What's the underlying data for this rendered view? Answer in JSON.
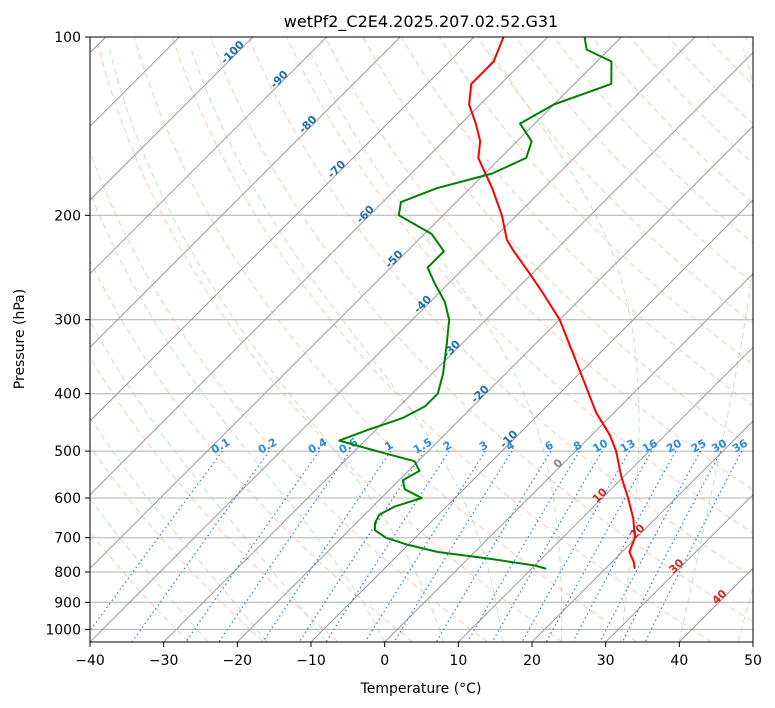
{
  "chart_data": {
    "type": "line",
    "title": "wetPf2_C2E4.2025.207.02.52.G31",
    "xlabel": "Temperature (°C)",
    "ylabel": "Pressure (hPa)",
    "xlim": [
      -40,
      50
    ],
    "ylim": [
      1050,
      100
    ],
    "y_scale": "log",
    "skew": true,
    "grid": true,
    "x_ticks": [
      -40,
      -30,
      -20,
      -10,
      0,
      10,
      20,
      30,
      40,
      50
    ],
    "x_tick_labels": [
      "−40",
      "−30",
      "−20",
      "−10",
      "0",
      "10",
      "20",
      "30",
      "40",
      "50"
    ],
    "y_ticks": [
      100,
      200,
      300,
      400,
      500,
      600,
      700,
      800,
      900,
      1000
    ],
    "y_tick_labels": [
      "100",
      "200",
      "300",
      "400",
      "500",
      "600",
      "700",
      "800",
      "900",
      "1000"
    ],
    "series": [
      {
        "color": "#ff0000",
        "points": [
          {
            "p": 790,
            "t": 24.0
          },
          {
            "p": 770,
            "t": 23.0
          },
          {
            "p": 740,
            "t": 21.0
          },
          {
            "p": 700,
            "t": 19.8
          },
          {
            "p": 650,
            "t": 17.0
          },
          {
            "p": 600,
            "t": 13.5
          },
          {
            "p": 550,
            "t": 9.5
          },
          {
            "p": 500,
            "t": 5.5
          },
          {
            "p": 470,
            "t": 2.5
          },
          {
            "p": 430,
            "t": -2.5
          },
          {
            "p": 400,
            "t": -6.0
          },
          {
            "p": 350,
            "t": -12.5
          },
          {
            "p": 300,
            "t": -20.0
          },
          {
            "p": 270,
            "t": -26.0
          },
          {
            "p": 250,
            "t": -30.5
          },
          {
            "p": 230,
            "t": -35.5
          },
          {
            "p": 220,
            "t": -38.0
          },
          {
            "p": 200,
            "t": -42.0
          },
          {
            "p": 180,
            "t": -47.0
          },
          {
            "p": 160,
            "t": -53.0
          },
          {
            "p": 150,
            "t": -55.0
          },
          {
            "p": 140,
            "t": -58.0
          },
          {
            "p": 130,
            "t": -61.5
          },
          {
            "p": 120,
            "t": -64.0
          },
          {
            "p": 110,
            "t": -64.0
          },
          {
            "p": 100,
            "t": -66.0
          }
        ]
      },
      {
        "color": "#008000",
        "points": [
          {
            "p": 790,
            "t": 12.0
          },
          {
            "p": 780,
            "t": 10.0
          },
          {
            "p": 760,
            "t": 3.0
          },
          {
            "p": 740,
            "t": -5.0
          },
          {
            "p": 720,
            "t": -10.0
          },
          {
            "p": 700,
            "t": -14.0
          },
          {
            "p": 680,
            "t": -16.5
          },
          {
            "p": 660,
            "t": -17.5
          },
          {
            "p": 640,
            "t": -18.0
          },
          {
            "p": 620,
            "t": -17.0
          },
          {
            "p": 600,
            "t": -14.5
          },
          {
            "p": 580,
            "t": -18.0
          },
          {
            "p": 560,
            "t": -19.5
          },
          {
            "p": 540,
            "t": -18.5
          },
          {
            "p": 520,
            "t": -20.5
          },
          {
            "p": 500,
            "t": -27.0
          },
          {
            "p": 480,
            "t": -33.5
          },
          {
            "p": 460,
            "t": -31.0
          },
          {
            "p": 440,
            "t": -28.0
          },
          {
            "p": 420,
            "t": -26.5
          },
          {
            "p": 400,
            "t": -26.5
          },
          {
            "p": 370,
            "t": -28.5
          },
          {
            "p": 330,
            "t": -32.0
          },
          {
            "p": 300,
            "t": -35.0
          },
          {
            "p": 280,
            "t": -38.0
          },
          {
            "p": 260,
            "t": -42.0
          },
          {
            "p": 245,
            "t": -45.0
          },
          {
            "p": 230,
            "t": -45.0
          },
          {
            "p": 215,
            "t": -49.0
          },
          {
            "p": 200,
            "t": -56.0
          },
          {
            "p": 190,
            "t": -57.5
          },
          {
            "p": 180,
            "t": -54.5
          },
          {
            "p": 170,
            "t": -49.0
          },
          {
            "p": 160,
            "t": -46.5
          },
          {
            "p": 150,
            "t": -48.0
          },
          {
            "p": 140,
            "t": -52.0
          },
          {
            "p": 130,
            "t": -50.0
          },
          {
            "p": 120,
            "t": -45.0
          },
          {
            "p": 110,
            "t": -48.0
          },
          {
            "p": 105,
            "t": -53.0
          },
          {
            "p": 100,
            "t": -55.0
          }
        ]
      }
    ],
    "isotherm_labels": [
      "-100",
      "-90",
      "-80",
      "-70",
      "-60",
      "-50",
      "-40",
      "-30",
      "-20",
      "-10",
      "0",
      "10",
      "20",
      "30",
      "40"
    ],
    "mixing_ratio_labels": [
      "0.1",
      "0.2",
      "0.4",
      "0.6",
      "1",
      "1.5",
      "2",
      "3",
      "4",
      "6",
      "8",
      "10",
      "13",
      "16",
      "20",
      "25",
      "30",
      "36"
    ]
  }
}
